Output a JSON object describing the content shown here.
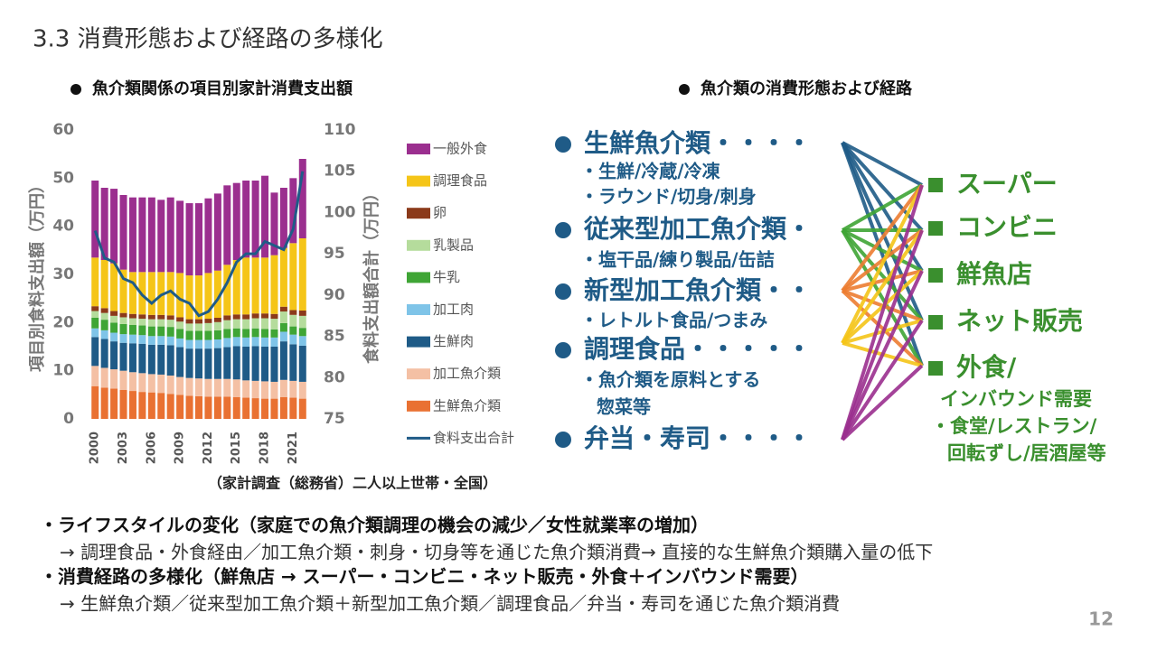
{
  "title": "3.3 消費形態および経路の多様化",
  "chart_heading": "魚介類関係の項目別家計消費支出額",
  "chart_data": {
    "type": "bar",
    "stacked": true,
    "categories": [
      "2000",
      null,
      null,
      "2003",
      null,
      null,
      "2006",
      null,
      null,
      "2009",
      null,
      null,
      "2012",
      null,
      null,
      "2015",
      null,
      null,
      "2018",
      null,
      null,
      "2021",
      null
    ],
    "y_label": "項目別食料支出額（万円）",
    "y2_label": "食料支出額合計（万円）",
    "ylim": [
      0,
      60
    ],
    "yticks": [
      0,
      10,
      20,
      30,
      40,
      50,
      60
    ],
    "y2lim": [
      75,
      110
    ],
    "y2ticks": [
      75,
      80,
      85,
      90,
      95,
      100,
      105,
      110
    ],
    "source": "（家計調査（総務省）二人以上世帯・全国）",
    "series": [
      {
        "name": "生鮮魚介類",
        "color": "#e97132",
        "values": [
          6.8,
          6.5,
          6.3,
          6.0,
          5.8,
          5.6,
          5.5,
          5.4,
          5.2,
          5.0,
          4.8,
          4.7,
          4.6,
          4.6,
          4.6,
          4.5,
          4.4,
          4.3,
          4.2,
          4.2,
          4.5,
          4.4,
          4.2
        ]
      },
      {
        "name": "加工魚介類",
        "color": "#f4c0a4",
        "values": [
          4.2,
          4.1,
          4.0,
          4.0,
          3.9,
          3.9,
          3.8,
          3.8,
          3.8,
          3.7,
          3.7,
          3.7,
          3.7,
          3.7,
          3.7,
          3.7,
          3.6,
          3.6,
          3.6,
          3.5,
          3.6,
          3.5,
          3.5
        ]
      },
      {
        "name": "生鮮肉",
        "color": "#1f5b87",
        "values": [
          6.0,
          6.0,
          5.8,
          5.8,
          6.0,
          6.1,
          6.1,
          6.2,
          6.3,
          6.2,
          6.1,
          6.2,
          6.3,
          6.4,
          6.6,
          6.9,
          7.0,
          7.2,
          7.2,
          7.3,
          8.0,
          7.6,
          7.5
        ]
      },
      {
        "name": "加工肉",
        "color": "#7fc4e8",
        "values": [
          1.8,
          1.8,
          1.8,
          1.8,
          1.8,
          1.8,
          1.8,
          1.8,
          1.8,
          1.8,
          1.8,
          1.8,
          1.8,
          1.8,
          1.9,
          1.9,
          1.9,
          1.9,
          1.9,
          1.9,
          2.0,
          2.0,
          2.0
        ]
      },
      {
        "name": "牛乳",
        "color": "#3fa535",
        "values": [
          2.2,
          2.2,
          2.1,
          2.1,
          2.0,
          2.0,
          2.0,
          2.0,
          2.0,
          2.0,
          1.9,
          1.9,
          1.9,
          1.9,
          1.9,
          1.8,
          1.8,
          1.8,
          1.8,
          1.7,
          1.8,
          1.7,
          1.7
        ]
      },
      {
        "name": "乳製品",
        "color": "#b5dc9c",
        "values": [
          1.4,
          1.4,
          1.4,
          1.4,
          1.4,
          1.4,
          1.5,
          1.5,
          1.5,
          1.5,
          1.5,
          1.5,
          1.6,
          1.7,
          1.8,
          1.9,
          2.0,
          2.1,
          2.2,
          2.2,
          2.4,
          2.4,
          2.5
        ]
      },
      {
        "name": "卵",
        "color": "#8b3a1a",
        "values": [
          1.0,
          1.0,
          1.0,
          0.9,
          0.9,
          0.9,
          0.9,
          0.9,
          0.9,
          0.9,
          0.9,
          0.9,
          0.9,
          0.9,
          1.0,
          1.0,
          1.0,
          1.0,
          1.0,
          1.0,
          1.0,
          1.0,
          1.1
        ]
      },
      {
        "name": "調理食品",
        "color": "#f5c518",
        "values": [
          10.1,
          10.0,
          9.9,
          9.0,
          8.7,
          8.8,
          8.9,
          8.9,
          9.0,
          9.2,
          9.1,
          9.1,
          9.5,
          9.8,
          10.5,
          11.3,
          11.8,
          11.6,
          11.6,
          12.2,
          12.2,
          13.9,
          15.0
        ]
      },
      {
        "name": "一般外食",
        "color": "#9b2f8f",
        "values": [
          16.0,
          15.0,
          15.5,
          15.5,
          15.5,
          15.5,
          15.5,
          15.0,
          15.5,
          15.0,
          15.0,
          15.0,
          15.5,
          16.0,
          16.5,
          16.0,
          16.0,
          16.0,
          17.0,
          13.0,
          12.5,
          13.5,
          16.5
        ]
      },
      {
        "name": "食料支出合計",
        "type": "line",
        "axis": "y2",
        "color": "#1f5b87",
        "values": [
          97.8,
          94.5,
          94.0,
          92.0,
          91.5,
          90.0,
          89.0,
          90.0,
          90.5,
          89.5,
          89.0,
          87.5,
          88.0,
          89.5,
          91.5,
          94.0,
          95.0,
          95.0,
          96.5,
          96.0,
          95.5,
          98.0,
          105.0
        ]
      }
    ]
  },
  "diagram": {
    "heading": "魚介類の消費形態および経路",
    "sources": [
      {
        "label": "生鮮魚介類・・・・",
        "details": [
          "・生鮮/冷蔵/冷凍",
          "・ラウンド/切身/刺身"
        ]
      },
      {
        "label": "従来型加工魚介類・",
        "details": [
          "・塩干品/練り製品/缶詰"
        ]
      },
      {
        "label": "新型加工魚介類・・",
        "details": [
          "・レトルト食品/つまみ"
        ]
      },
      {
        "label": "調理食品・・・・・",
        "details": [
          "・魚介類を原料とする",
          "惣菜等"
        ]
      },
      {
        "label": "弁当・寿司・・・・",
        "details": []
      }
    ],
    "destinations": [
      {
        "label": "スーパー",
        "details": []
      },
      {
        "label": "コンビニ",
        "details": []
      },
      {
        "label": "鮮魚店",
        "details": []
      },
      {
        "label": "ネット販売",
        "details": []
      },
      {
        "label": "外食/",
        "details": [
          "インバウンド需要",
          "・食堂/レストラン/",
          "回転ずし/居酒屋等"
        ]
      }
    ]
  },
  "notes": [
    {
      "text": "・ライフスタイルの変化（家庭での魚介類調理の機会の減少／女性就業率の増加）",
      "detail": "→ 調理食品・外食経由／加工魚介類・刺身・切身等を通じた魚介類消費→ 直接的な生鮮魚介類購入量の低下"
    },
    {
      "text": "・消費経路の多様化（鮮魚店 → スーパー・コンビニ・ネット販売・外食＋インバウンド需要）",
      "detail": "→ 生鮮魚介類／従来型加工魚介類＋新型加工魚介類／調理食品／弁当・寿司を通じた魚介類消費"
    }
  ],
  "page_number": "12"
}
